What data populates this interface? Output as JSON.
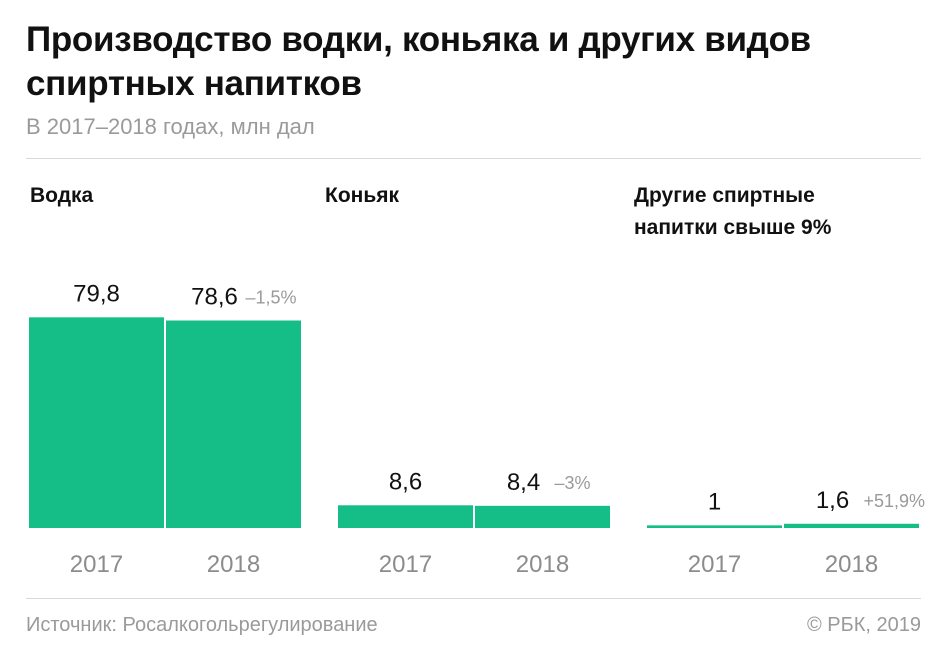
{
  "title": "Производство водки, коньяка и других видов спиртных напитков",
  "subtitle": "В 2017–2018 годах, млн дал",
  "footer": {
    "source": "Источник: Росалкогольрегулирование",
    "copyright": "© РБК, 2019"
  },
  "colors": {
    "bar": "#15bd87",
    "text": "#111111",
    "muted": "#9a9a9a"
  },
  "chart_data": [
    {
      "type": "bar",
      "title": "Водка",
      "categories": [
        "2017",
        "2018"
      ],
      "values": [
        79.8,
        78.6
      ],
      "value_labels": [
        "79,8",
        "78,6"
      ],
      "change_label": "–1,5%"
    },
    {
      "type": "bar",
      "title": "Коньяк",
      "categories": [
        "2017",
        "2018"
      ],
      "values": [
        8.6,
        8.4
      ],
      "value_labels": [
        "8,6",
        "8,4"
      ],
      "change_label": "–3%"
    },
    {
      "type": "bar",
      "title": "Другие спиртные напитки свыше 9%",
      "title_lines": [
        "Другие спиртные",
        "напитки свыше 9%"
      ],
      "categories": [
        "2017",
        "2018"
      ],
      "values": [
        1,
        1.6
      ],
      "value_labels": [
        "1",
        "1,6"
      ],
      "change_label": "+51,9%"
    }
  ]
}
